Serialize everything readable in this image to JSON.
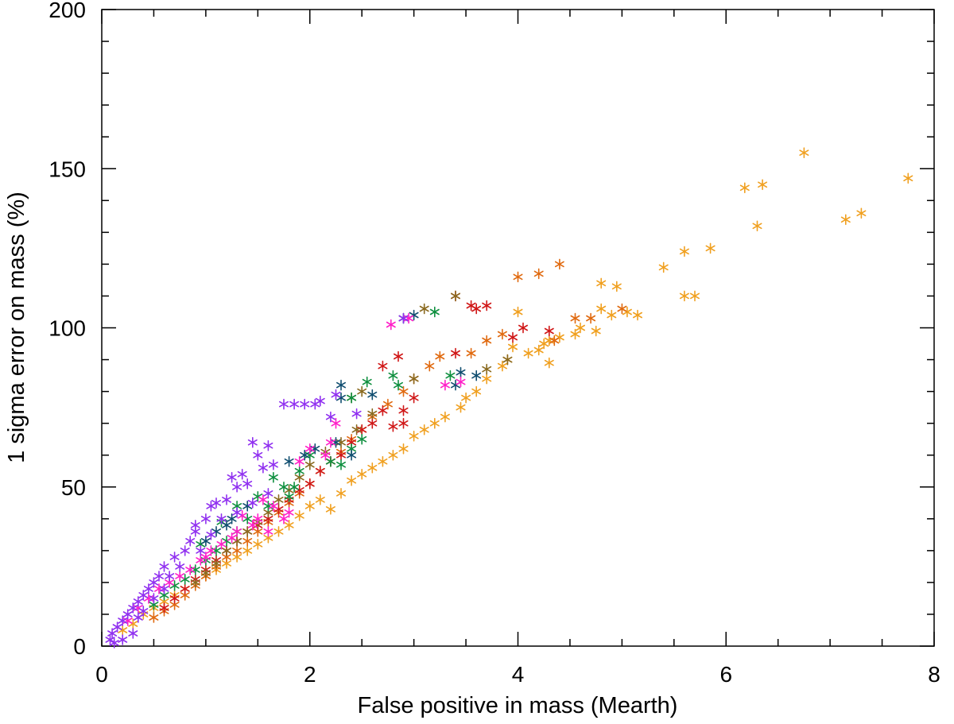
{
  "chart_data": {
    "type": "scatter",
    "title": "",
    "xlabel": "False positive in mass (Mearth)",
    "ylabel": "1 sigma error on mass (%)",
    "xlim": [
      0,
      8
    ],
    "ylim": [
      0,
      200
    ],
    "x_ticks": [
      "0",
      "2",
      "4",
      "6",
      "8"
    ],
    "y_ticks": [
      "0",
      "50",
      "100",
      "150",
      "200"
    ],
    "marker": "asterisk",
    "grid": false,
    "series": [
      {
        "name": "orange",
        "color": "#f0a020",
        "points": [
          [
            7.75,
            147
          ],
          [
            6.75,
            155
          ],
          [
            6.35,
            145
          ],
          [
            6.18,
            144
          ],
          [
            6.3,
            132
          ],
          [
            7.15,
            134
          ],
          [
            7.3,
            136
          ],
          [
            5.85,
            125
          ],
          [
            5.6,
            124
          ],
          [
            5.4,
            119
          ],
          [
            5.6,
            110
          ],
          [
            5.7,
            110
          ],
          [
            5.15,
            104
          ],
          [
            5.05,
            105
          ],
          [
            4.95,
            113
          ],
          [
            4.8,
            114
          ],
          [
            4.9,
            104
          ],
          [
            4.8,
            106
          ],
          [
            4.6,
            100
          ],
          [
            4.55,
            98
          ],
          [
            4.75,
            99
          ],
          [
            4.4,
            97
          ],
          [
            4.3,
            96
          ],
          [
            4.25,
            95
          ],
          [
            4.2,
            93
          ],
          [
            4.1,
            92
          ],
          [
            4.0,
            105
          ],
          [
            4.3,
            89
          ],
          [
            3.95,
            94
          ],
          [
            3.9,
            90
          ],
          [
            3.85,
            88
          ],
          [
            3.7,
            84
          ],
          [
            3.6,
            80
          ],
          [
            3.5,
            78
          ],
          [
            3.45,
            75
          ],
          [
            3.3,
            72
          ],
          [
            3.2,
            70
          ],
          [
            3.1,
            68
          ],
          [
            3.0,
            66
          ],
          [
            2.9,
            62
          ],
          [
            2.8,
            60
          ],
          [
            2.7,
            58
          ],
          [
            2.6,
            56
          ],
          [
            2.5,
            54
          ],
          [
            2.4,
            52
          ],
          [
            2.2,
            43
          ],
          [
            2.3,
            48
          ],
          [
            2.1,
            46
          ],
          [
            2.0,
            44
          ],
          [
            1.9,
            41
          ],
          [
            1.8,
            38
          ],
          [
            1.7,
            36
          ],
          [
            1.6,
            34
          ],
          [
            1.5,
            32
          ],
          [
            1.4,
            30
          ],
          [
            1.3,
            28
          ],
          [
            1.2,
            26
          ],
          [
            1.1,
            24
          ],
          [
            1.0,
            22
          ],
          [
            0.9,
            20
          ],
          [
            0.8,
            18
          ],
          [
            0.7,
            16
          ],
          [
            0.6,
            14
          ],
          [
            0.5,
            12
          ],
          [
            0.4,
            10
          ],
          [
            0.3,
            7
          ],
          [
            0.2,
            5
          ]
        ]
      },
      {
        "name": "dark-orange",
        "color": "#e06a10",
        "points": [
          [
            4.4,
            120
          ],
          [
            4.2,
            117
          ],
          [
            4.0,
            116
          ],
          [
            5.0,
            106
          ],
          [
            4.7,
            103
          ],
          [
            4.55,
            103
          ],
          [
            4.35,
            96
          ],
          [
            3.85,
            98
          ],
          [
            3.7,
            96
          ],
          [
            3.55,
            92
          ],
          [
            3.25,
            91
          ],
          [
            3.15,
            88
          ],
          [
            3.0,
            84
          ],
          [
            2.9,
            80
          ],
          [
            2.75,
            76
          ],
          [
            2.6,
            72
          ],
          [
            2.5,
            68
          ],
          [
            2.4,
            65
          ],
          [
            2.3,
            61
          ],
          [
            2.2,
            58
          ],
          [
            2.1,
            55
          ],
          [
            2.0,
            51
          ],
          [
            1.9,
            48
          ],
          [
            1.8,
            45
          ],
          [
            1.7,
            42
          ],
          [
            1.6,
            39
          ],
          [
            1.5,
            36
          ],
          [
            1.4,
            33
          ],
          [
            1.3,
            30
          ],
          [
            1.2,
            28
          ],
          [
            1.1,
            25
          ],
          [
            1.0,
            22
          ],
          [
            0.9,
            19
          ],
          [
            0.8,
            16
          ],
          [
            0.7,
            13
          ],
          [
            0.6,
            11
          ],
          [
            0.5,
            9
          ]
        ]
      },
      {
        "name": "red",
        "color": "#d01818",
        "points": [
          [
            3.55,
            107
          ],
          [
            3.7,
            107
          ],
          [
            3.4,
            110
          ],
          [
            3.6,
            106
          ],
          [
            4.3,
            99
          ],
          [
            4.05,
            100
          ],
          [
            3.95,
            97
          ],
          [
            3.4,
            92
          ],
          [
            2.85,
            91
          ],
          [
            2.7,
            88
          ],
          [
            3.0,
            78
          ],
          [
            2.9,
            74
          ],
          [
            2.7,
            74
          ],
          [
            2.9,
            70
          ],
          [
            2.8,
            69
          ],
          [
            2.6,
            70
          ],
          [
            2.5,
            68
          ],
          [
            2.4,
            64
          ],
          [
            2.3,
            60
          ],
          [
            2.2,
            58
          ],
          [
            2.1,
            55
          ],
          [
            2.0,
            51
          ],
          [
            1.9,
            49
          ],
          [
            1.8,
            46
          ],
          [
            1.7,
            43
          ],
          [
            1.6,
            40
          ],
          [
            1.5,
            38
          ],
          [
            1.4,
            36
          ],
          [
            1.3,
            33
          ],
          [
            1.2,
            30
          ],
          [
            1.1,
            27
          ],
          [
            1.0,
            24
          ],
          [
            0.9,
            21
          ],
          [
            0.8,
            18
          ],
          [
            0.7,
            15
          ],
          [
            0.6,
            12
          ]
        ]
      },
      {
        "name": "olive",
        "color": "#8a6a20",
        "points": [
          [
            3.1,
            106
          ],
          [
            3.4,
            110
          ],
          [
            3.9,
            90
          ],
          [
            3.7,
            87
          ],
          [
            2.5,
            80
          ],
          [
            2.4,
            78
          ],
          [
            3.0,
            84
          ],
          [
            2.6,
            73
          ],
          [
            2.45,
            68
          ],
          [
            2.3,
            64
          ],
          [
            2.15,
            61
          ],
          [
            2.0,
            57
          ],
          [
            1.9,
            53
          ],
          [
            1.8,
            49
          ],
          [
            1.7,
            46
          ],
          [
            1.6,
            42
          ],
          [
            1.5,
            39
          ],
          [
            1.4,
            36
          ],
          [
            1.3,
            33
          ],
          [
            1.2,
            30
          ],
          [
            1.1,
            26
          ],
          [
            1.0,
            23
          ],
          [
            0.9,
            20
          ]
        ]
      },
      {
        "name": "green",
        "color": "#109040",
        "points": [
          [
            3.2,
            105
          ],
          [
            2.8,
            85
          ],
          [
            2.55,
            83
          ],
          [
            2.85,
            82
          ],
          [
            3.35,
            85
          ],
          [
            2.4,
            78
          ],
          [
            1.5,
            47
          ],
          [
            1.65,
            53
          ],
          [
            1.75,
            50
          ],
          [
            2.0,
            60
          ],
          [
            2.2,
            58
          ],
          [
            1.9,
            55
          ],
          [
            1.85,
            50
          ],
          [
            2.5,
            65
          ],
          [
            2.4,
            62
          ],
          [
            2.3,
            57
          ],
          [
            1.8,
            47
          ],
          [
            1.6,
            44
          ],
          [
            1.4,
            40
          ],
          [
            1.3,
            36
          ],
          [
            1.2,
            33
          ],
          [
            1.1,
            30
          ],
          [
            1.0,
            27
          ],
          [
            0.9,
            24
          ],
          [
            0.8,
            21
          ],
          [
            0.7,
            19
          ],
          [
            0.6,
            16
          ],
          [
            0.5,
            13
          ],
          [
            1.3,
            44
          ],
          [
            1.15,
            39
          ],
          [
            0.95,
            32
          ]
        ]
      },
      {
        "name": "teal",
        "color": "#104e70",
        "points": [
          [
            2.9,
            103
          ],
          [
            3.0,
            104
          ],
          [
            2.3,
            82
          ],
          [
            2.3,
            78
          ],
          [
            2.6,
            79
          ],
          [
            3.4,
            82
          ],
          [
            3.45,
            86
          ],
          [
            3.6,
            85
          ],
          [
            2.05,
            62
          ],
          [
            1.95,
            60
          ],
          [
            1.8,
            58
          ],
          [
            2.4,
            60
          ],
          [
            1.25,
            40
          ],
          [
            1.2,
            38
          ],
          [
            1.1,
            36
          ],
          [
            1.0,
            33
          ],
          [
            1.4,
            44
          ],
          [
            2.25,
            64
          ]
        ]
      },
      {
        "name": "magenta",
        "color": "#ff20c8",
        "points": [
          [
            2.78,
            101
          ],
          [
            2.95,
            103
          ],
          [
            3.3,
            82
          ],
          [
            3.45,
            83
          ],
          [
            2.25,
            70
          ],
          [
            2.2,
            64
          ],
          [
            2.0,
            62
          ],
          [
            1.9,
            58
          ],
          [
            2.15,
            60
          ],
          [
            1.55,
            46
          ],
          [
            1.65,
            44
          ],
          [
            1.8,
            42
          ],
          [
            1.75,
            40
          ],
          [
            1.45,
            38
          ],
          [
            1.3,
            36
          ],
          [
            1.25,
            34
          ],
          [
            1.15,
            32
          ],
          [
            1.05,
            30
          ],
          [
            0.95,
            27
          ],
          [
            0.85,
            24
          ],
          [
            0.75,
            22
          ],
          [
            0.65,
            20
          ],
          [
            0.55,
            18
          ],
          [
            0.45,
            15
          ],
          [
            0.35,
            12
          ],
          [
            0.25,
            8
          ],
          [
            1.35,
            41
          ],
          [
            1.5,
            40
          ],
          [
            1.6,
            36
          ],
          [
            1.0,
            28
          ]
        ]
      },
      {
        "name": "purple",
        "color": "#9030f0",
        "points": [
          [
            2.9,
            103
          ],
          [
            1.75,
            76
          ],
          [
            1.85,
            76
          ],
          [
            1.95,
            76
          ],
          [
            2.05,
            76
          ],
          [
            2.1,
            77
          ],
          [
            2.25,
            79
          ],
          [
            2.45,
            73
          ],
          [
            2.2,
            72
          ],
          [
            1.45,
            64
          ],
          [
            1.6,
            63
          ],
          [
            1.5,
            60
          ],
          [
            1.65,
            57
          ],
          [
            1.55,
            56
          ],
          [
            1.35,
            54
          ],
          [
            1.25,
            53
          ],
          [
            1.3,
            50
          ],
          [
            1.4,
            51
          ],
          [
            1.1,
            45
          ],
          [
            1.05,
            44
          ],
          [
            1.2,
            46
          ],
          [
            1.0,
            40
          ],
          [
            0.9,
            36
          ],
          [
            0.85,
            33
          ],
          [
            0.8,
            30
          ],
          [
            0.7,
            28
          ],
          [
            0.6,
            25
          ],
          [
            0.55,
            22
          ],
          [
            0.5,
            20
          ],
          [
            0.45,
            18
          ],
          [
            0.4,
            16
          ],
          [
            0.35,
            14
          ],
          [
            0.3,
            12
          ],
          [
            0.25,
            10
          ],
          [
            0.2,
            8
          ],
          [
            0.15,
            6
          ],
          [
            0.1,
            4
          ],
          [
            0.08,
            2
          ],
          [
            0.12,
            1
          ],
          [
            0.2,
            2
          ],
          [
            0.3,
            4
          ],
          [
            0.95,
            30
          ],
          [
            1.05,
            35
          ],
          [
            0.75,
            25
          ],
          [
            0.65,
            22
          ],
          [
            0.9,
            38
          ],
          [
            1.15,
            40
          ],
          [
            1.3,
            42
          ],
          [
            1.45,
            45
          ],
          [
            1.6,
            48
          ],
          [
            0.5,
            15
          ],
          [
            0.4,
            11
          ],
          [
            0.35,
            9
          ],
          [
            0.6,
            18
          ]
        ]
      }
    ]
  }
}
